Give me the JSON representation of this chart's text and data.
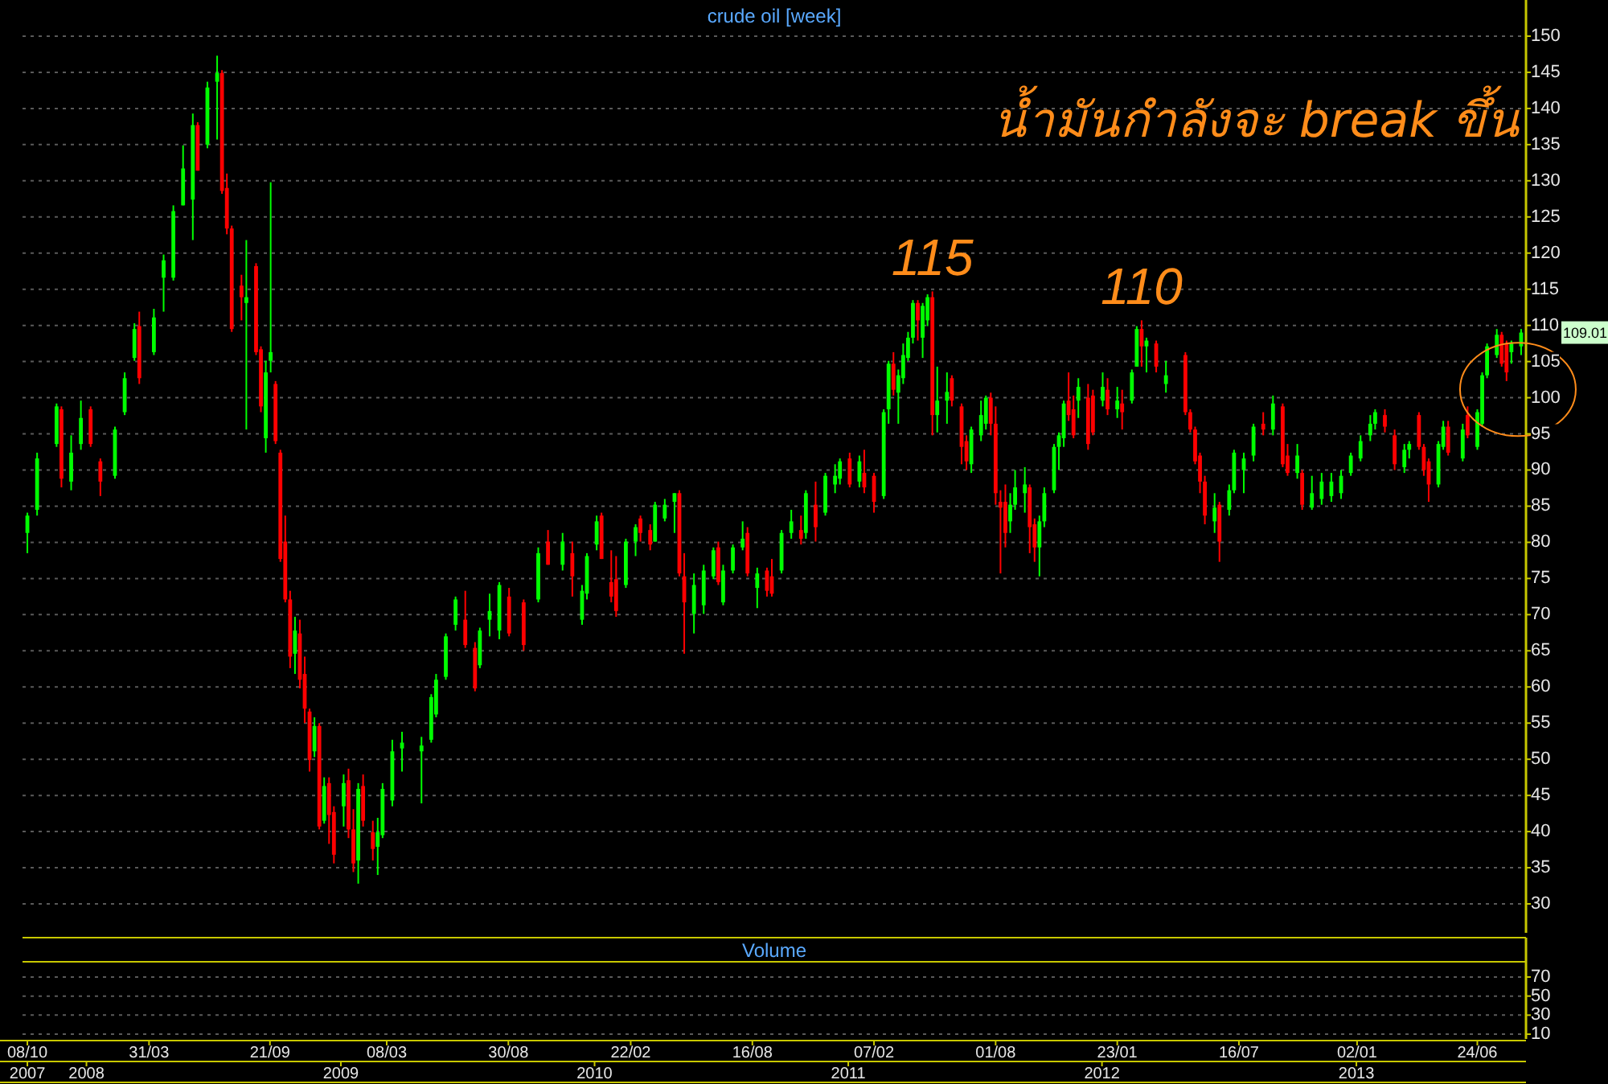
{
  "chart_data": [
    {
      "type": "candlestick",
      "title": "crude oil [week]",
      "xlim": [
        "2007-10-01",
        "2013-09-02"
      ],
      "ylim": [
        26,
        155
      ],
      "yticks": [
        30,
        35,
        40,
        45,
        50,
        55,
        60,
        65,
        70,
        75,
        80,
        85,
        90,
        95,
        100,
        105,
        110,
        115,
        120,
        125,
        130,
        135,
        140,
        145,
        150
      ],
      "grid": "y",
      "tick_labels": "y",
      "series": [
        {
          "color": "#00ff00",
          "x": [
            "2007-10-08",
            "2007-10-22",
            "2007-11-19",
            "2007-12-10",
            "2007-12-24",
            "2008-02-11",
            "2008-02-25",
            "2008-03-10",
            "2008-04-07",
            "2008-04-21",
            "2008-05-05",
            "2008-05-19",
            "2008-06-02",
            "2008-06-23",
            "2008-07-07",
            "2008-08-18",
            "2008-09-15",
            "2008-09-22",
            "2008-10-27",
            "2008-11-24",
            "2008-12-08",
            "2009-01-05",
            "2009-01-26",
            "2009-02-23",
            "2009-03-02",
            "2009-03-16",
            "2009-03-30",
            "2009-04-27",
            "2009-05-11",
            "2009-05-18",
            "2009-06-01",
            "2009-06-15",
            "2009-07-20",
            "2009-08-03",
            "2009-08-17",
            "2009-10-12",
            "2009-11-16",
            "2009-12-14",
            "2009-12-21",
            "2010-01-04",
            "2010-02-15",
            "2010-03-01",
            "2010-03-29",
            "2010-04-12",
            "2010-04-26",
            "2010-05-24",
            "2010-06-07",
            "2010-06-21",
            "2010-07-05",
            "2010-07-19",
            "2010-08-02",
            "2010-08-23",
            "2010-09-27",
            "2010-10-11",
            "2010-11-01",
            "2010-11-29",
            "2010-12-13",
            "2010-12-20",
            "2011-01-17",
            "2011-02-21",
            "2011-02-28",
            "2011-03-14",
            "2011-03-21",
            "2011-03-28",
            "2011-04-04",
            "2011-04-18",
            "2011-04-25",
            "2011-05-09",
            "2011-05-23",
            "2011-06-27",
            "2011-07-11",
            "2011-07-18",
            "2011-08-22",
            "2011-08-29",
            "2011-09-12",
            "2011-10-03",
            "2011-10-10",
            "2011-10-24",
            "2011-10-31",
            "2011-11-07",
            "2011-11-28",
            "2012-01-02",
            "2012-01-23",
            "2012-02-13",
            "2012-02-20",
            "2012-03-05",
            "2012-04-02",
            "2012-06-11",
            "2012-07-02",
            "2012-07-09",
            "2012-07-23",
            "2012-08-06",
            "2012-09-03",
            "2012-10-08",
            "2012-10-29",
            "2012-11-12",
            "2012-11-26",
            "2012-12-10",
            "2012-12-24",
            "2013-01-07",
            "2013-01-21",
            "2013-01-28",
            "2013-03-11",
            "2013-03-18",
            "2013-04-29",
            "2013-05-06",
            "2013-06-03",
            "2013-06-24",
            "2013-07-01",
            "2013-07-08",
            "2013-07-22",
            "2013-08-12",
            "2013-08-26"
          ],
          "ohlc": [
            [
              81.3,
              84.1,
              78.5,
              83.7
            ],
            [
              84.5,
              92.4,
              83.7,
              91.6
            ],
            [
              93.6,
              99.2,
              93.2,
              98.8
            ],
            [
              88.4,
              94.8,
              87.2,
              92.4
            ],
            [
              93.6,
              99.6,
              92.8,
              97.2
            ],
            [
              89.2,
              96.0,
              88.8,
              95.6
            ],
            [
              98.0,
              103.5,
              97.6,
              102.7
            ],
            [
              105.5,
              110.3,
              105.1,
              109.5
            ],
            [
              106.3,
              112.3,
              105.9,
              111.1
            ],
            [
              116.6,
              119.8,
              111.9,
              119.0
            ],
            [
              116.6,
              126.6,
              116.2,
              125.8
            ],
            [
              126.6,
              134.9,
              126.6,
              131.7
            ],
            [
              127.4,
              139.3,
              121.8,
              137.7
            ],
            [
              135.0,
              143.7,
              134.5,
              142.9
            ],
            [
              143.7,
              147.3,
              135.7,
              144.9
            ],
            [
              113.1,
              121.8,
              95.6,
              113.9
            ],
            [
              94.4,
              105.1,
              92.4,
              103.5
            ],
            [
              105.1,
              129.8,
              103.5,
              106.3
            ],
            [
              64.6,
              69.7,
              61.8,
              67.8
            ],
            [
              51.1,
              55.8,
              50.3,
              54.6
            ],
            [
              41.5,
              47.5,
              41.1,
              46.3
            ],
            [
              43.5,
              47.9,
              40.7,
              46.7
            ],
            [
              36.0,
              46.7,
              32.8,
              45.9
            ],
            [
              37.9,
              41.9,
              34.0,
              39.9
            ],
            [
              39.5,
              46.7,
              39.1,
              45.9
            ],
            [
              44.3,
              52.7,
              43.5,
              51.1
            ],
            [
              51.5,
              53.8,
              48.3,
              52.3
            ],
            [
              51.1,
              53.1,
              43.9,
              51.9
            ],
            [
              52.7,
              59.0,
              52.3,
              58.6
            ],
            [
              56.2,
              61.8,
              55.8,
              61.0
            ],
            [
              61.4,
              67.4,
              61.0,
              67.0
            ],
            [
              68.6,
              72.5,
              67.8,
              72.1
            ],
            [
              63.0,
              68.2,
              62.6,
              67.8
            ],
            [
              69.3,
              72.9,
              67.0,
              70.5
            ],
            [
              67.8,
              74.5,
              66.6,
              74.1
            ],
            [
              72.1,
              79.3,
              71.7,
              78.5
            ],
            [
              76.9,
              81.3,
              76.1,
              80.1
            ],
            [
              69.3,
              74.1,
              68.6,
              73.3
            ],
            [
              72.9,
              78.5,
              72.1,
              78.1
            ],
            [
              79.7,
              83.7,
              78.9,
              82.9
            ],
            [
              74.1,
              80.5,
              73.7,
              80.1
            ],
            [
              80.1,
              82.5,
              78.1,
              82.1
            ],
            [
              80.1,
              85.6,
              80.1,
              85.2
            ],
            [
              83.3,
              86.0,
              82.9,
              85.2
            ],
            [
              85.6,
              86.8,
              81.3,
              86.8
            ],
            [
              70.1,
              75.7,
              67.4,
              74.1
            ],
            [
              71.3,
              76.9,
              70.1,
              76.1
            ],
            [
              75.3,
              79.3,
              74.9,
              78.9
            ],
            [
              71.7,
              76.9,
              71.3,
              76.1
            ],
            [
              76.1,
              79.7,
              75.7,
              79.3
            ],
            [
              79.3,
              82.9,
              78.9,
              80.5
            ],
            [
              73.7,
              76.5,
              70.9,
              75.7
            ],
            [
              76.1,
              81.7,
              75.7,
              81.3
            ],
            [
              81.3,
              84.5,
              80.5,
              82.9
            ],
            [
              81.3,
              87.2,
              80.5,
              86.8
            ],
            [
              84.1,
              89.6,
              83.7,
              89.2
            ],
            [
              88.0,
              90.8,
              86.8,
              89.2
            ],
            [
              88.8,
              91.6,
              88.0,
              91.2
            ],
            [
              88.4,
              92.0,
              87.6,
              91.2
            ],
            [
              86.4,
              98.4,
              86.0,
              98.0
            ],
            [
              98.4,
              105.1,
              96.4,
              104.7
            ],
            [
              100.7,
              103.9,
              96.4,
              103.1
            ],
            [
              102.7,
              107.5,
              101.9,
              105.9
            ],
            [
              105.5,
              109.1,
              105.1,
              108.3
            ],
            [
              108.3,
              113.5,
              107.5,
              113.1
            ],
            [
              108.3,
              113.1,
              105.5,
              112.7
            ],
            [
              110.7,
              114.3,
              109.9,
              113.9
            ],
            [
              97.6,
              104.3,
              95.2,
              99.6
            ],
            [
              99.6,
              103.5,
              96.4,
              100.8
            ],
            [
              90.8,
              96.0,
              89.6,
              95.6
            ],
            [
              94.8,
              99.6,
              94.0,
              97.6
            ],
            [
              96.4,
              100.3,
              95.6,
              100.0
            ],
            [
              82.9,
              86.8,
              81.3,
              85.2
            ],
            [
              85.2,
              90.0,
              84.5,
              87.6
            ],
            [
              86.8,
              90.4,
              84.1,
              88.0
            ],
            [
              79.3,
              83.7,
              75.3,
              82.9
            ],
            [
              82.9,
              87.6,
              82.1,
              86.8
            ],
            [
              87.2,
              93.6,
              86.8,
              93.2
            ],
            [
              93.2,
              95.2,
              90.0,
              94.8
            ],
            [
              94.4,
              99.6,
              93.2,
              99.2
            ],
            [
              99.6,
              102.7,
              97.2,
              101.5
            ],
            [
              99.6,
              103.5,
              98.8,
              101.5
            ],
            [
              98.4,
              101.5,
              97.2,
              99.6
            ],
            [
              99.6,
              103.9,
              99.2,
              103.5
            ],
            [
              104.3,
              109.9,
              104.3,
              109.5
            ],
            [
              107.1,
              108.3,
              103.5,
              107.9
            ],
            [
              101.9,
              105.1,
              100.7,
              103.1
            ],
            [
              82.9,
              86.8,
              81.3,
              84.8
            ],
            [
              84.5,
              88.0,
              83.7,
              87.2
            ],
            [
              87.2,
              92.8,
              86.8,
              92.4
            ],
            [
              90.0,
              92.4,
              86.8,
              91.6
            ],
            [
              92.0,
              96.4,
              91.2,
              96.0
            ],
            [
              95.6,
              100.3,
              94.8,
              99.2
            ],
            [
              89.6,
              93.6,
              88.8,
              92.0
            ],
            [
              84.8,
              89.2,
              84.5,
              86.8
            ],
            [
              86.0,
              89.6,
              85.2,
              88.4
            ],
            [
              86.4,
              89.6,
              85.6,
              88.4
            ],
            [
              86.8,
              90.0,
              86.0,
              89.2
            ],
            [
              89.6,
              92.4,
              89.2,
              92.0
            ],
            [
              91.6,
              94.8,
              91.2,
              94.0
            ],
            [
              94.8,
              97.6,
              94.0,
              96.4
            ],
            [
              96.4,
              98.4,
              95.6,
              98.0
            ],
            [
              90.4,
              93.6,
              89.6,
              92.8
            ],
            [
              92.8,
              94.0,
              91.6,
              93.6
            ],
            [
              88.0,
              94.0,
              87.6,
              93.6
            ],
            [
              93.2,
              96.8,
              92.8,
              96.0
            ],
            [
              91.6,
              96.4,
              91.2,
              95.6
            ],
            [
              93.2,
              98.4,
              92.8,
              98.0
            ],
            [
              96.4,
              103.5,
              96.0,
              103.1
            ],
            [
              103.1,
              107.5,
              102.7,
              107.1
            ],
            [
              105.9,
              109.5,
              105.5,
              108.7
            ],
            [
              106.3,
              107.9,
              104.7,
              107.5
            ],
            [
              107.1,
              109.5,
              105.9,
              109.01
            ]
          ],
          "value_labels": [
            null,
            null,
            null,
            null,
            null,
            null,
            null,
            null,
            null,
            null,
            null,
            null,
            null,
            null,
            null,
            null,
            null,
            null,
            null,
            null,
            null,
            null,
            null,
            null,
            null,
            null,
            null,
            null,
            null,
            null,
            null,
            null,
            null,
            null,
            null,
            null,
            null,
            null,
            null,
            null,
            null,
            null,
            null,
            null,
            null,
            null,
            null,
            null,
            null,
            null,
            null,
            null,
            null,
            null,
            null,
            null,
            null,
            null,
            null,
            null,
            null,
            null,
            null,
            null,
            null,
            null,
            null,
            null,
            null,
            null,
            null,
            null,
            null,
            null,
            null,
            null,
            null,
            null,
            null,
            null,
            null,
            null,
            null,
            null,
            null,
            null,
            null,
            null,
            null,
            null,
            null,
            null,
            null,
            null,
            null,
            null,
            null,
            null,
            null,
            null,
            null,
            null,
            null,
            null,
            null,
            null,
            null,
            null,
            null,
            null,
            null,
            null,
            "109.01"
          ]
        },
        {
          "color": "#ff0000",
          "x": [
            "2007-11-26",
            "2008-01-07",
            "2008-01-21",
            "2008-03-17",
            "2008-06-09",
            "2008-07-14",
            "2008-07-21",
            "2008-07-28",
            "2008-08-11",
            "2008-09-01",
            "2008-09-08",
            "2008-09-29",
            "2008-10-06",
            "2008-10-13",
            "2008-10-20",
            "2008-11-03",
            "2008-11-10",
            "2008-11-17",
            "2008-12-01",
            "2008-12-15",
            "2008-12-22",
            "2009-01-12",
            "2009-01-19",
            "2009-02-02",
            "2009-02-16",
            "2009-06-29",
            "2009-07-13",
            "2009-08-31",
            "2009-09-21",
            "2009-10-26",
            "2009-11-30",
            "2010-01-11",
            "2010-01-25",
            "2010-02-01",
            "2010-03-08",
            "2010-03-22",
            "2010-05-03",
            "2010-05-10",
            "2010-06-28",
            "2010-08-09",
            "2010-09-06",
            "2010-09-13",
            "2010-10-25",
            "2010-11-15",
            "2011-01-03",
            "2011-01-24",
            "2011-02-07",
            "2011-03-07",
            "2011-04-11",
            "2011-05-02",
            "2011-05-30",
            "2011-06-13",
            "2011-06-20",
            "2011-07-25",
            "2011-08-01",
            "2011-08-08",
            "2011-08-15",
            "2011-09-19",
            "2011-09-26",
            "2011-11-14",
            "2011-11-21",
            "2011-12-12",
            "2011-12-19",
            "2012-01-09",
            "2012-01-30",
            "2012-02-27",
            "2012-03-19",
            "2012-04-30",
            "2012-05-07",
            "2012-05-14",
            "2012-05-21",
            "2012-05-28",
            "2012-06-18",
            "2012-08-20",
            "2012-09-17",
            "2012-09-24",
            "2012-10-15",
            "2013-02-11",
            "2013-02-25",
            "2013-04-01",
            "2013-04-08",
            "2013-04-15",
            "2013-05-13",
            "2013-06-10",
            "2013-07-29",
            "2013-08-05"
          ],
          "ohlc": [
            [
              98.4,
              98.8,
              87.6,
              88.8
            ],
            [
              98.4,
              98.8,
              93.2,
              93.6
            ],
            [
              91.2,
              91.6,
              86.4,
              88.4
            ],
            [
              109.9,
              111.9,
              101.9,
              102.7
            ],
            [
              137.7,
              138.1,
              131.4,
              131.4
            ],
            [
              144.9,
              145.3,
              128.2,
              128.6
            ],
            [
              129.0,
              131.0,
              122.6,
              123.4
            ],
            [
              123.4,
              123.8,
              109.1,
              109.5
            ],
            [
              115.5,
              117.0,
              110.7,
              113.9
            ],
            [
              118.2,
              118.6,
              105.9,
              106.3
            ],
            [
              106.7,
              107.1,
              98.0,
              98.8
            ],
            [
              101.9,
              102.3,
              93.6,
              94.0
            ],
            [
              92.4,
              92.8,
              77.3,
              77.7
            ],
            [
              80.1,
              83.7,
              71.7,
              72.1
            ],
            [
              72.1,
              73.3,
              62.6,
              64.2
            ],
            [
              67.4,
              69.3,
              59.8,
              61.0
            ],
            [
              61.8,
              64.2,
              55.0,
              57.0
            ],
            [
              56.6,
              57.0,
              48.3,
              49.9
            ],
            [
              54.6,
              55.0,
              40.3,
              40.7
            ],
            [
              46.7,
              47.5,
              38.3,
              42.3
            ],
            [
              42.7,
              43.5,
              35.6,
              36.8
            ],
            [
              47.1,
              48.7,
              39.1,
              40.3
            ],
            [
              40.3,
              43.1,
              34.4,
              35.6
            ],
            [
              46.3,
              47.9,
              40.7,
              41.5
            ],
            [
              39.9,
              41.5,
              36.0,
              37.6
            ],
            [
              69.3,
              73.3,
              65.4,
              65.8
            ],
            [
              65.4,
              66.2,
              59.4,
              59.8
            ],
            [
              72.5,
              73.7,
              67.0,
              67.4
            ],
            [
              71.7,
              72.1,
              65.0,
              65.8
            ],
            [
              80.1,
              81.7,
              76.9,
              76.9
            ],
            [
              78.5,
              80.1,
              72.5,
              75.3
            ],
            [
              83.7,
              84.1,
              77.7,
              77.7
            ],
            [
              74.5,
              78.9,
              71.7,
              72.5
            ],
            [
              74.9,
              78.1,
              69.7,
              70.5
            ],
            [
              83.3,
              83.7,
              80.1,
              81.3
            ],
            [
              81.7,
              82.5,
              78.9,
              79.7
            ],
            [
              86.8,
              87.2,
              75.3,
              75.7
            ],
            [
              75.3,
              78.5,
              64.6,
              71.7
            ],
            [
              79.3,
              80.1,
              74.1,
              74.5
            ],
            [
              81.3,
              82.1,
              75.3,
              75.7
            ],
            [
              76.1,
              76.5,
              72.5,
              73.3
            ],
            [
              75.3,
              77.7,
              72.5,
              72.9
            ],
            [
              81.7,
              83.7,
              79.7,
              80.5
            ],
            [
              85.2,
              88.4,
              80.1,
              82.1
            ],
            [
              91.6,
              92.4,
              87.6,
              88.0
            ],
            [
              89.6,
              92.8,
              86.8,
              87.6
            ],
            [
              89.2,
              89.6,
              84.1,
              85.6
            ],
            [
              104.7,
              106.3,
              100.3,
              101.1
            ],
            [
              113.1,
              113.5,
              107.9,
              110.7
            ],
            [
              113.9,
              114.7,
              94.8,
              97.6
            ],
            [
              102.7,
              103.1,
              98.8,
              99.6
            ],
            [
              98.8,
              99.2,
              90.8,
              93.2
            ],
            [
              94.0,
              94.8,
              90.0,
              91.2
            ],
            [
              100.0,
              100.7,
              94.8,
              96.4
            ],
            [
              96.4,
              98.8,
              85.2,
              86.8
            ],
            [
              85.6,
              87.2,
              75.7,
              84.8
            ],
            [
              85.6,
              88.0,
              79.3,
              81.3
            ],
            [
              87.6,
              88.0,
              78.5,
              82.1
            ],
            [
              82.5,
              83.3,
              77.3,
              79.3
            ],
            [
              99.6,
              103.5,
              96.8,
              97.6
            ],
            [
              98.4,
              100.3,
              94.4,
              94.8
            ],
            [
              100.0,
              101.9,
              92.8,
              93.6
            ],
            [
              100.3,
              101.1,
              94.8,
              95.2
            ],
            [
              101.1,
              102.7,
              97.6,
              98.4
            ],
            [
              99.2,
              101.1,
              95.6,
              98.0
            ],
            [
              109.5,
              110.7,
              104.3,
              107.1
            ],
            [
              107.5,
              107.9,
              103.5,
              104.3
            ],
            [
              105.9,
              106.3,
              97.6,
              98.0
            ],
            [
              98.0,
              98.4,
              95.2,
              95.6
            ],
            [
              95.6,
              96.0,
              90.8,
              91.2
            ],
            [
              92.0,
              92.4,
              86.8,
              88.4
            ],
            [
              88.4,
              89.2,
              82.5,
              83.7
            ],
            [
              85.2,
              85.6,
              77.3,
              80.1
            ],
            [
              96.4,
              98.0,
              94.8,
              95.6
            ],
            [
              98.8,
              99.2,
              90.4,
              90.8
            ],
            [
              92.0,
              93.6,
              89.2,
              89.6
            ],
            [
              89.6,
              90.0,
              84.5,
              85.2
            ],
            [
              97.6,
              98.4,
              95.2,
              96.0
            ],
            [
              94.8,
              95.6,
              90.0,
              90.8
            ],
            [
              97.6,
              98.0,
              92.8,
              93.2
            ],
            [
              93.2,
              93.6,
              89.2,
              90.0
            ],
            [
              91.2,
              91.6,
              85.6,
              88.0
            ],
            [
              96.0,
              96.8,
              92.0,
              92.4
            ],
            [
              97.6,
              98.8,
              94.4,
              94.8
            ],
            [
              108.7,
              109.1,
              104.3,
              104.7
            ],
            [
              107.5,
              107.9,
              102.3,
              103.5
            ]
          ]
        }
      ],
      "annotations": [
        {
          "text": "115",
          "x": "2011-05-02",
          "y": 114.7
        },
        {
          "text": "110",
          "x": "2012-02-27",
          "y": 110.7
        },
        "น้ำมันกำลังจะ break ขึ้น"
      ]
    },
    {
      "type": "bar",
      "title": "Volume",
      "xlim": [
        "2007-10-01",
        "2013-09-02"
      ],
      "x2lim": [
        "2007-10-01",
        "2013-09-02"
      ],
      "ylim": [
        5,
        86
      ],
      "yticks": [
        10,
        30,
        50,
        70
      ],
      "grid": "y",
      "xticks": [
        {
          "value": "2007-10-08",
          "label": "08/10"
        },
        {
          "value": "2008-03-31",
          "label": "31/03"
        },
        {
          "value": "2008-09-21",
          "label": "21/09"
        },
        {
          "value": "2009-03-08",
          "label": "08/03"
        },
        {
          "value": "2009-08-30",
          "label": "30/08"
        },
        {
          "value": "2010-02-22",
          "label": "22/02"
        },
        {
          "value": "2010-08-16",
          "label": "16/08"
        },
        {
          "value": "2011-02-07",
          "label": "07/02"
        },
        {
          "value": "2011-08-01",
          "label": "01/08"
        },
        {
          "value": "2012-01-23",
          "label": "23/01"
        },
        {
          "value": "2012-07-16",
          "label": "16/07"
        },
        {
          "value": "2013-01-02",
          "label": "02/01"
        },
        {
          "value": "2013-06-24",
          "label": "24/06"
        }
      ],
      "x2ticks": [
        {
          "value": "2007-10-08",
          "label": "2007"
        },
        {
          "value": "2008-01-01",
          "label": "2008"
        },
        {
          "value": "2009-01-01",
          "label": "2009"
        },
        {
          "value": "2010-01-01",
          "label": "2010"
        },
        {
          "value": "2011-01-01",
          "label": "2011"
        },
        {
          "value": "2012-01-01",
          "label": "2012"
        },
        {
          "value": "2013-01-01",
          "label": "2013"
        }
      ]
    }
  ]
}
